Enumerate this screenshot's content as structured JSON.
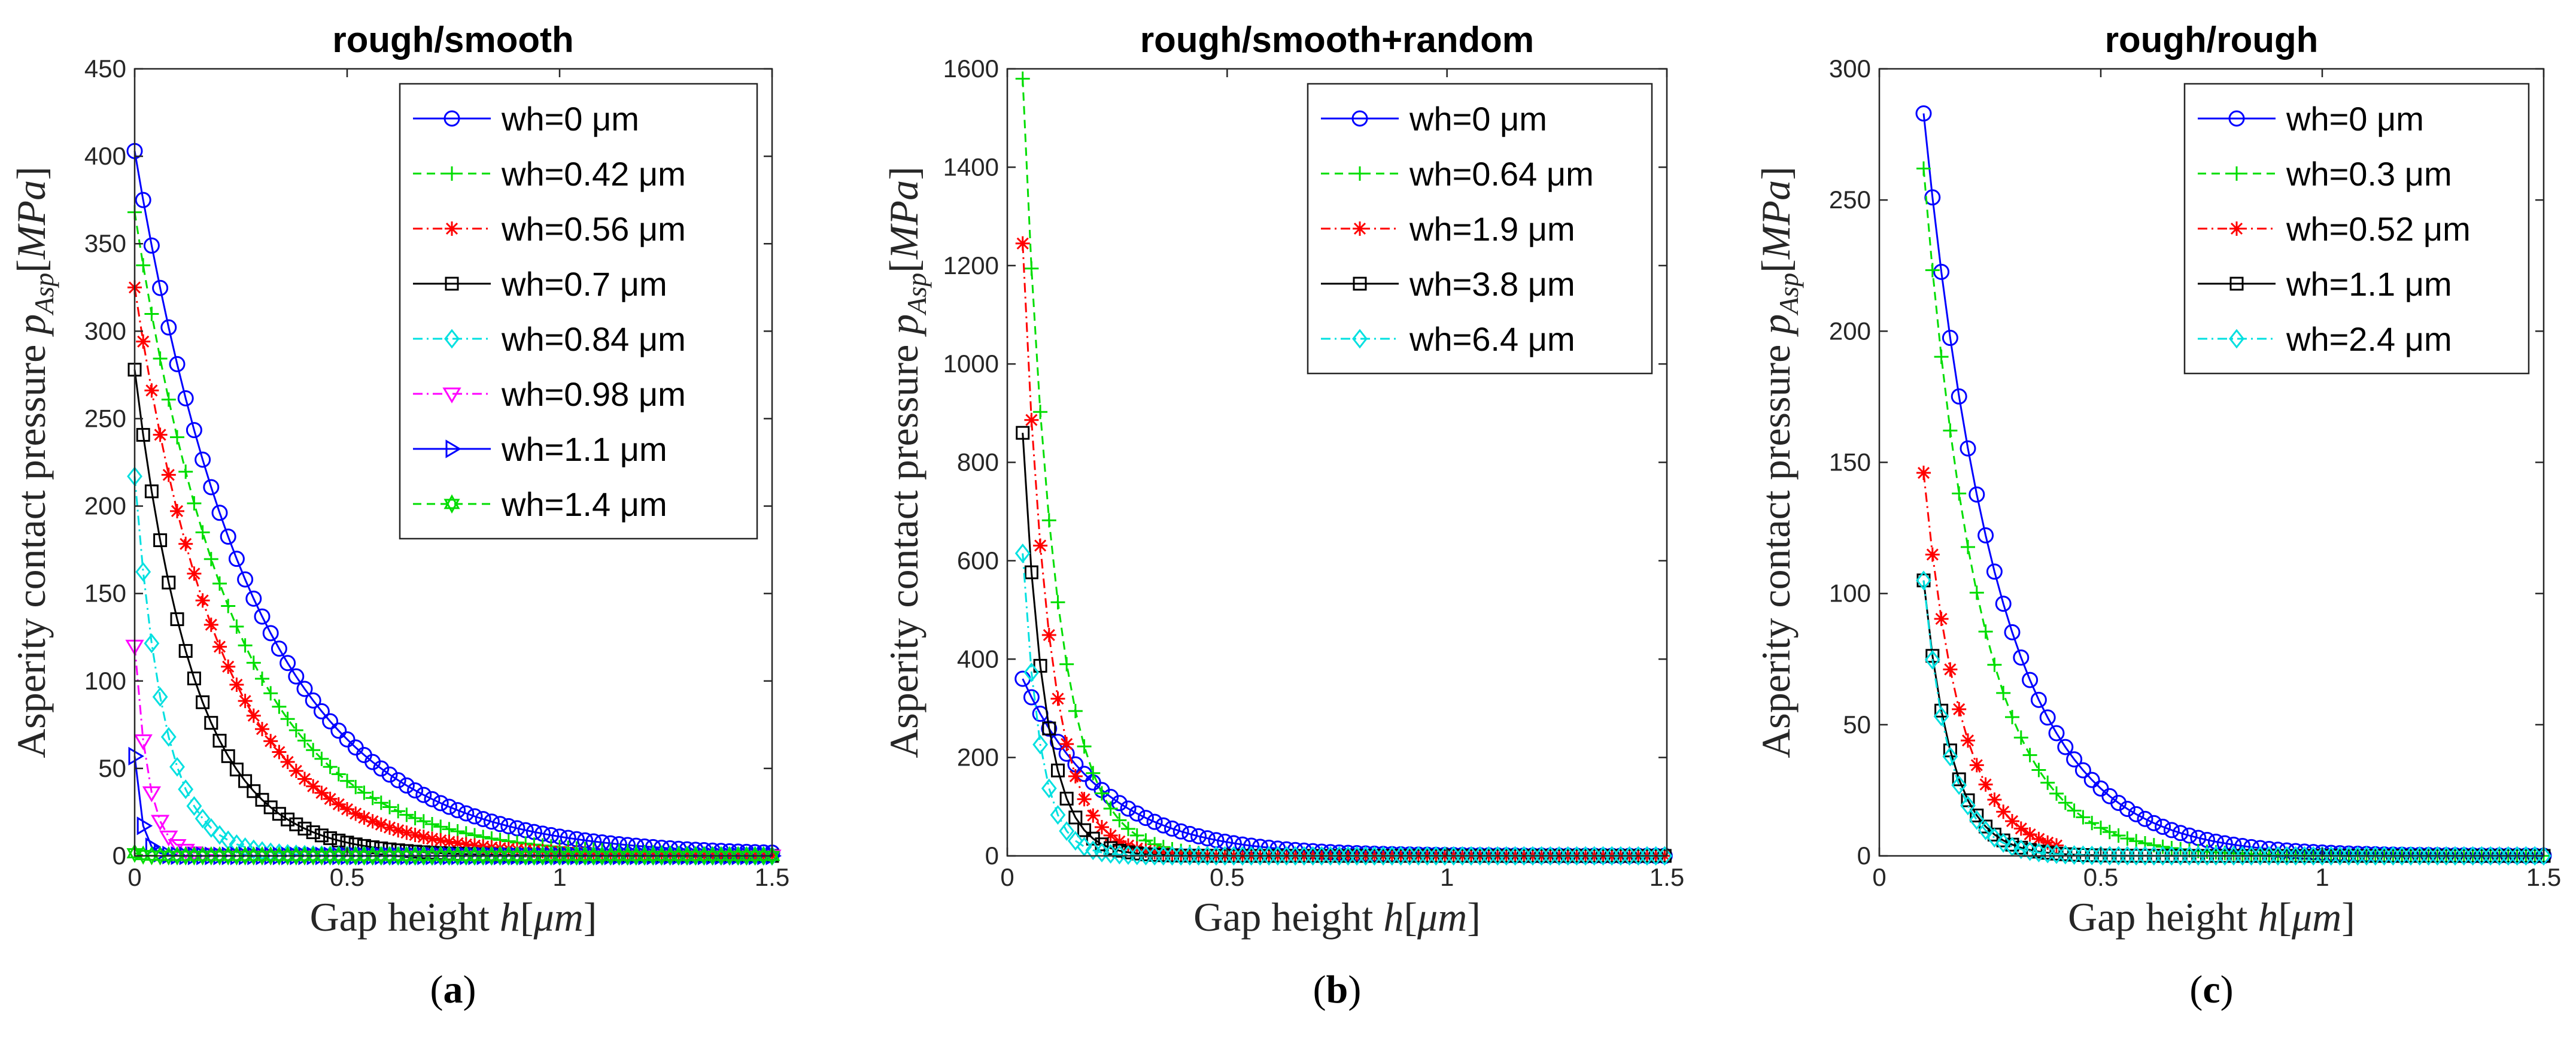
{
  "figure": {
    "captions": [
      "(a)",
      "(b)",
      "(c)"
    ]
  },
  "chart_data": [
    {
      "type": "line",
      "title": "rough/smooth",
      "xlabel": "Gap height h[μm]",
      "ylabel": "Asperity contact pressure p_Asp[MPa]",
      "xlim": [
        0,
        1.5
      ],
      "ylim": [
        0,
        450
      ],
      "xticks": [
        0,
        0.5,
        1,
        1.5
      ],
      "xtick_labels": [
        "0",
        "0.5",
        "1",
        "1.5"
      ],
      "yticks": [
        0,
        50,
        100,
        150,
        200,
        250,
        300,
        350,
        400,
        450
      ],
      "ytick_labels": [
        "0",
        "50",
        "100",
        "150",
        "200",
        "250",
        "300",
        "350",
        "400",
        "450"
      ],
      "legend_position": "top-right",
      "series": [
        {
          "name": "wh=0 μm",
          "color": "#0000ff",
          "marker": "circle",
          "dash": "solid",
          "p0": 403,
          "x0": 0,
          "k": 3.6,
          "xmax": 1.5
        },
        {
          "name": "wh=0.42 μm",
          "color": "#00dd00",
          "marker": "plus",
          "dash": "dashed",
          "p0": 368,
          "x0": 0,
          "k": 4.3,
          "xmax": 1.5
        },
        {
          "name": "wh=0.56 μm",
          "color": "#ff0000",
          "marker": "asterisk",
          "dash": "dashdot",
          "p0": 325,
          "x0": 0,
          "k": 5.0,
          "xmax": 1.5
        },
        {
          "name": "wh=0.7 μm",
          "color": "#000000",
          "marker": "square",
          "dash": "solid",
          "p0": 278,
          "x0": 0,
          "k": 7.2,
          "xmax": 1.5
        },
        {
          "name": "wh=0.84 μm",
          "color": "#00e0e0",
          "marker": "diamond",
          "dash": "dashdot",
          "p0": 217,
          "x0": 0,
          "k": 14.5,
          "xmax": 1.5
        },
        {
          "name": "wh=0.98 μm",
          "color": "#ff00ff",
          "marker": "triangle-down",
          "dash": "dashdot",
          "p0": 120,
          "x0": 0,
          "k": 30.0,
          "xmax": 1.5
        },
        {
          "name": "wh=1.1 μm",
          "color": "#0000ff",
          "marker": "triangle-right",
          "dash": "solid",
          "p0": 57,
          "x0": 0,
          "k": 60.0,
          "xmax": 1.5
        },
        {
          "name": "wh=1.4 μm",
          "color": "#00dd00",
          "marker": "hexagram",
          "dash": "dashed",
          "p0": 1.5,
          "x0": 0,
          "k": 60.0,
          "xmax": 1.5
        }
      ]
    },
    {
      "type": "line",
      "title": "rough/smooth+random",
      "xlabel": "Gap height h[μm]",
      "ylabel": "Asperity contact pressure p_Asp[MPa]",
      "xlim": [
        0,
        1.5
      ],
      "ylim": [
        0,
        1600
      ],
      "xticks": [
        0,
        0.5,
        1,
        1.5
      ],
      "xtick_labels": [
        "0",
        "0.5",
        "1",
        "1.5"
      ],
      "yticks": [
        0,
        200,
        400,
        600,
        800,
        1000,
        1200,
        1400,
        1600
      ],
      "ytick_labels": [
        "0",
        "200",
        "400",
        "600",
        "800",
        "1000",
        "1200",
        "1400",
        "1600"
      ],
      "legend_position": "top-right",
      "series": [
        {
          "name": "wh=0 μm",
          "color": "#0000ff",
          "marker": "circle",
          "dash": "solid",
          "p0": 360,
          "x0": 0.035,
          "k": 5.5,
          "xmax": 1.5
        },
        {
          "name": "wh=0.64 μm",
          "color": "#00dd00",
          "marker": "plus",
          "dash": "dashed",
          "p0": 1580,
          "x0": 0.035,
          "k": 14.0,
          "xmax": 1.5
        },
        {
          "name": "wh=1.9 μm",
          "color": "#ff0000",
          "marker": "asterisk",
          "dash": "dashdot",
          "p0": 1245,
          "x0": 0.035,
          "k": 17.0,
          "xmax": 1.5
        },
        {
          "name": "wh=3.8 μm",
          "color": "#000000",
          "marker": "square",
          "dash": "solid",
          "p0": 860,
          "x0": 0.035,
          "k": 20.0,
          "xmax": 1.5
        },
        {
          "name": "wh=6.4 μm",
          "color": "#00e0e0",
          "marker": "diamond",
          "dash": "dashdot",
          "p0": 615,
          "x0": 0.035,
          "k": 25.0,
          "xmax": 1.5
        }
      ]
    },
    {
      "type": "line",
      "title": "rough/rough",
      "xlabel": "Gap height h[μm]",
      "ylabel": "Asperity contact pressure p_Asp[MPa]",
      "xlim": [
        0,
        1.5
      ],
      "ylim": [
        0,
        300
      ],
      "xticks": [
        0,
        0.5,
        1,
        1.5
      ],
      "xtick_labels": [
        "0",
        "0.5",
        "1",
        "1.5"
      ],
      "yticks": [
        0,
        50,
        100,
        150,
        200,
        250,
        300
      ],
      "ytick_labels": [
        "0",
        "50",
        "100",
        "150",
        "200",
        "250",
        "300"
      ],
      "legend_position": "top-right",
      "series": [
        {
          "name": "wh=0 μm",
          "color": "#0000ff",
          "marker": "circle",
          "dash": "solid",
          "p0": 283,
          "x0": 0.1,
          "k": 6.0,
          "xmax": 1.5
        },
        {
          "name": "wh=0.3 μm",
          "color": "#00dd00",
          "marker": "plus",
          "dash": "dashed",
          "p0": 262,
          "x0": 0.1,
          "k": 8.0,
          "xmax": 1.5
        },
        {
          "name": "wh=0.52 μm",
          "color": "#ff0000",
          "marker": "asterisk",
          "dash": "dashdot",
          "p0": 146,
          "x0": 0.1,
          "k": 12.0,
          "xmax": 0.4
        },
        {
          "name": "wh=1.1 μm",
          "color": "#000000",
          "marker": "square",
          "dash": "solid",
          "p0": 105,
          "x0": 0.1,
          "k": 16.0,
          "xmax": 1.5
        },
        {
          "name": "wh=2.4 μm",
          "color": "#00e0e0",
          "marker": "diamond",
          "dash": "dashdot",
          "p0": 105,
          "x0": 0.1,
          "k": 17.0,
          "xmax": 1.5
        }
      ]
    }
  ]
}
